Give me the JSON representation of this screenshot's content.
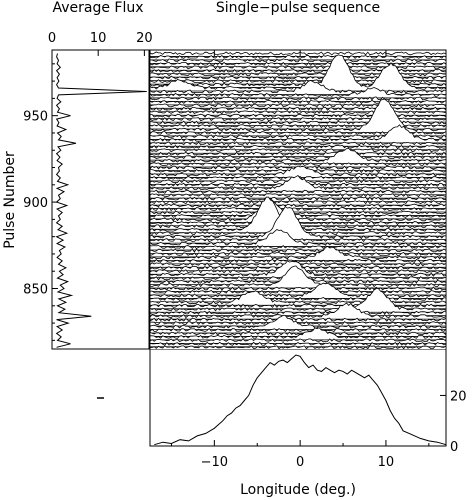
{
  "chart_data": [
    {
      "type": "line",
      "panel": "average-flux",
      "title": "Average Flux",
      "xlabel": "",
      "ylabel": "Pulse Number",
      "xticks": [
        0,
        10,
        20
      ],
      "yticks": [
        850,
        900,
        950
      ],
      "xlim": [
        0,
        21
      ],
      "ylim": [
        815,
        988
      ],
      "pulse": [
        816,
        818,
        820,
        822,
        824,
        826,
        828,
        830,
        832,
        834,
        836,
        838,
        840,
        842,
        844,
        846,
        848,
        850,
        852,
        854,
        856,
        858,
        860,
        862,
        864,
        866,
        868,
        870,
        872,
        874,
        876,
        878,
        880,
        882,
        884,
        886,
        888,
        890,
        892,
        894,
        896,
        898,
        900,
        902,
        904,
        906,
        908,
        910,
        912,
        914,
        916,
        918,
        920,
        922,
        924,
        926,
        928,
        930,
        932,
        934,
        936,
        938,
        940,
        942,
        944,
        946,
        948,
        950,
        952,
        954,
        956,
        958,
        960,
        962,
        964,
        966,
        968,
        970,
        972,
        974,
        976,
        978,
        980,
        982,
        984,
        986
      ],
      "flux": [
        1.0,
        4.0,
        1.2,
        2.0,
        1.0,
        2.2,
        1.1,
        3.5,
        1.0,
        8.5,
        1.5,
        2.8,
        1.2,
        3.0,
        1.5,
        4.2,
        1.3,
        2.6,
        1.8,
        3.4,
        1.2,
        2.4,
        1.6,
        3.0,
        1.4,
        2.2,
        1.1,
        2.0,
        1.6,
        2.8,
        1.1,
        2.4,
        1.0,
        3.2,
        1.3,
        2.2,
        1.0,
        1.8,
        1.4,
        2.2,
        1.1,
        3.2,
        1.0,
        1.8,
        1.4,
        2.6,
        1.1,
        3.4,
        1.2,
        1.8,
        1.0,
        1.6,
        1.4,
        2.2,
        1.1,
        1.7,
        1.0,
        1.9,
        1.3,
        5.2,
        1.4,
        2.0,
        1.2,
        3.0,
        1.1,
        1.5,
        1.0,
        4.0,
        1.2,
        1.6,
        1.0,
        1.9,
        1.1,
        1.4,
        20.5,
        1.4,
        1.0,
        1.5,
        1.1,
        1.6,
        1.0,
        1.8,
        1.1,
        1.4,
        1.0,
        1.2
      ]
    },
    {
      "type": "line",
      "panel": "single-pulse-sequence",
      "title": "Single−pulse sequence",
      "xlabel": "",
      "ylabel": "",
      "xlim": [
        -17.5,
        17
      ],
      "ylim": [
        815,
        988
      ],
      "pulse_start": 816,
      "pulse_end": 986,
      "pulse_step": 2,
      "bright_pulses": [
        {
          "pulse": 966,
          "longitude": 4.5,
          "amplitude": 34
        },
        {
          "pulse": 966,
          "longitude": 10.5,
          "amplitude": 24
        },
        {
          "pulse": 966,
          "longitude": -14,
          "amplitude": 8
        },
        {
          "pulse": 964,
          "longitude": 1.5,
          "amplitude": 10
        },
        {
          "pulse": 962,
          "longitude": 8.5,
          "amplitude": 6
        },
        {
          "pulse": 942,
          "longitude": 9.8,
          "amplitude": 30
        },
        {
          "pulse": 936,
          "longitude": 11.5,
          "amplitude": 14
        },
        {
          "pulse": 924,
          "longitude": 5.5,
          "amplitude": 12
        },
        {
          "pulse": 916,
          "longitude": 0.0,
          "amplitude": 8
        },
        {
          "pulse": 908,
          "longitude": -0.5,
          "amplitude": 12
        },
        {
          "pulse": 890,
          "longitude": -3.5,
          "amplitude": 20
        },
        {
          "pulse": 884,
          "longitude": -3.8,
          "amplitude": 32
        },
        {
          "pulse": 880,
          "longitude": -1.5,
          "amplitude": 30
        },
        {
          "pulse": 876,
          "longitude": -2.5,
          "amplitude": 14
        },
        {
          "pulse": 868,
          "longitude": 3.5,
          "amplitude": 10
        },
        {
          "pulse": 858,
          "longitude": -1.0,
          "amplitude": 14
        },
        {
          "pulse": 852,
          "longitude": -0.5,
          "amplitude": 18
        },
        {
          "pulse": 846,
          "longitude": 3.0,
          "amplitude": 12
        },
        {
          "pulse": 842,
          "longitude": -5.5,
          "amplitude": 12
        },
        {
          "pulse": 838,
          "longitude": 9.0,
          "amplitude": 20
        },
        {
          "pulse": 834,
          "longitude": 5.5,
          "amplitude": 12
        },
        {
          "pulse": 828,
          "longitude": -2.0,
          "amplitude": 10
        },
        {
          "pulse": 822,
          "longitude": 2.0,
          "amplitude": 8
        }
      ]
    },
    {
      "type": "line",
      "panel": "integrated-profile",
      "xlabel": "Longitude (deg.)",
      "ylabel": "",
      "xticks": [
        -10,
        0,
        10
      ],
      "yticks": [
        0,
        20
      ],
      "xlim": [
        -17.5,
        17
      ],
      "ylim": [
        0,
        36
      ],
      "longitude": [
        -17.0,
        -16.0,
        -15.0,
        -14.0,
        -13.0,
        -12.0,
        -11.0,
        -10.0,
        -9.0,
        -8.5,
        -8.0,
        -7.5,
        -7.0,
        -6.5,
        -6.0,
        -5.5,
        -5.0,
        -4.5,
        -4.0,
        -3.5,
        -3.0,
        -2.5,
        -2.0,
        -1.5,
        -1.0,
        -0.5,
        0.0,
        0.5,
        1.0,
        1.5,
        2.0,
        2.5,
        3.0,
        3.5,
        4.0,
        4.5,
        5.0,
        5.5,
        6.0,
        6.5,
        7.0,
        7.5,
        8.0,
        8.5,
        9.0,
        9.5,
        10.0,
        10.5,
        11.0,
        11.5,
        12.0,
        13.0,
        14.0,
        15.0,
        16.0,
        17.0
      ],
      "flux": [
        0.5,
        1.5,
        1.0,
        2.5,
        2.0,
        4.0,
        5.0,
        7.0,
        10.0,
        12.0,
        13.0,
        15.0,
        16.0,
        18.0,
        20.0,
        24.0,
        27.0,
        29.0,
        31.0,
        33.0,
        32.0,
        33.5,
        34.0,
        33.0,
        34.5,
        36.0,
        35.5,
        33.0,
        31.0,
        32.0,
        30.0,
        29.5,
        31.0,
        30.0,
        29.0,
        30.0,
        29.5,
        28.5,
        30.0,
        29.0,
        28.0,
        27.0,
        28.0,
        26.0,
        24.0,
        21.0,
        18.0,
        14.0,
        11.0,
        9.0,
        6.0,
        4.5,
        3.0,
        2.0,
        1.5,
        0.5
      ]
    }
  ]
}
